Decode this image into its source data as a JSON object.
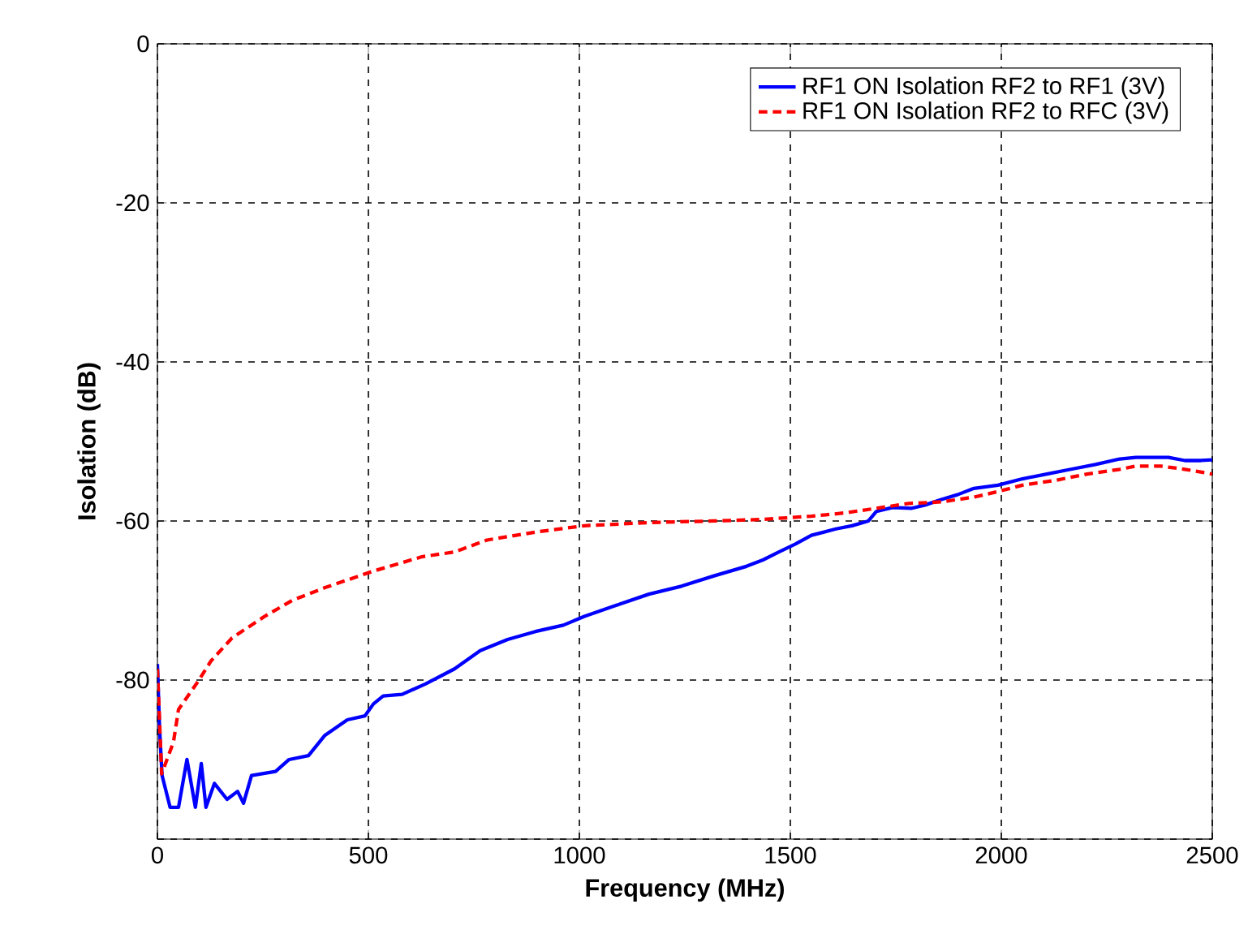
{
  "chart_data": {
    "type": "line",
    "xlabel": "Frequency (MHz)",
    "ylabel": "Isolation (dB)",
    "xlim": [
      0,
      2500
    ],
    "ylim": [
      -100,
      0
    ],
    "xticks": [
      0,
      500,
      1000,
      1500,
      2000,
      2500
    ],
    "yticks": [
      {
        "value": -100,
        "label": null
      },
      -80,
      -60,
      -40,
      -20,
      0
    ],
    "grid": true,
    "legend": "top right",
    "series": [
      {
        "name": "RF1 ON Isolation RF2 to RF1 (3V)",
        "color": "#0000ff",
        "line_style": "solid",
        "x": [
          0,
          5,
          11,
          30,
          50,
          70,
          90,
          104,
          115,
          135,
          165,
          190,
          204,
          223,
          280,
          312,
          358,
          396,
          450,
          492,
          512,
          535,
          580,
          635,
          704,
          765,
          830,
          896,
          962,
          1012,
          1088,
          1165,
          1242,
          1319,
          1396,
          1435,
          1473,
          1512,
          1550,
          1608,
          1646,
          1685,
          1704,
          1742,
          1788,
          1819,
          1858,
          1896,
          1935,
          1992,
          2050,
          2108,
          2165,
          2223,
          2281,
          2319,
          2396,
          2435,
          2473,
          2500
        ],
        "values": [
          -78,
          -86,
          -92,
          -96,
          -96,
          -90,
          -96,
          -90.5,
          -96,
          -93,
          -95,
          -94,
          -95.5,
          -92,
          -91.5,
          -90,
          -89.5,
          -87,
          -85,
          -84.5,
          -83,
          -82,
          -81.8,
          -80.5,
          -78.6,
          -76.3,
          -74.9,
          -73.9,
          -73.1,
          -72,
          -70.6,
          -69.2,
          -68.2,
          -66.9,
          -65.7,
          -64.9,
          -63.9,
          -62.9,
          -61.8,
          -61,
          -60.6,
          -60,
          -58.8,
          -58.3,
          -58.4,
          -58,
          -57.3,
          -56.7,
          -55.9,
          -55.5,
          -54.7,
          -54.1,
          -53.5,
          -52.9,
          -52.2,
          -52,
          -52,
          -52.4,
          -52.4,
          -52.3
        ]
      },
      {
        "name": "RF1 ON Isolation RF2 to RFC (3V)",
        "color": "#ff0000",
        "line_style": "dashed",
        "x": [
          0,
          5,
          10,
          38,
          50,
          96,
          127,
          177,
          254,
          319,
          396,
          512,
          627,
          704,
          781,
          896,
          1012,
          1165,
          1319,
          1435,
          1550,
          1627,
          1704,
          1781,
          1858,
          1935,
          1992,
          2050,
          2127,
          2204,
          2281,
          2319,
          2377,
          2435,
          2500
        ],
        "values": [
          -78.6,
          -85,
          -91.8,
          -87.8,
          -83.7,
          -80.2,
          -77.6,
          -74.7,
          -72,
          -70,
          -68.4,
          -66.3,
          -64.5,
          -63.9,
          -62.4,
          -61.4,
          -60.6,
          -60.2,
          -60,
          -59.8,
          -59.4,
          -59,
          -58.4,
          -57.8,
          -57.6,
          -57,
          -56.3,
          -55.5,
          -54.9,
          -54.1,
          -53.5,
          -53.1,
          -53.1,
          -53.5,
          -54.1
        ]
      }
    ]
  }
}
